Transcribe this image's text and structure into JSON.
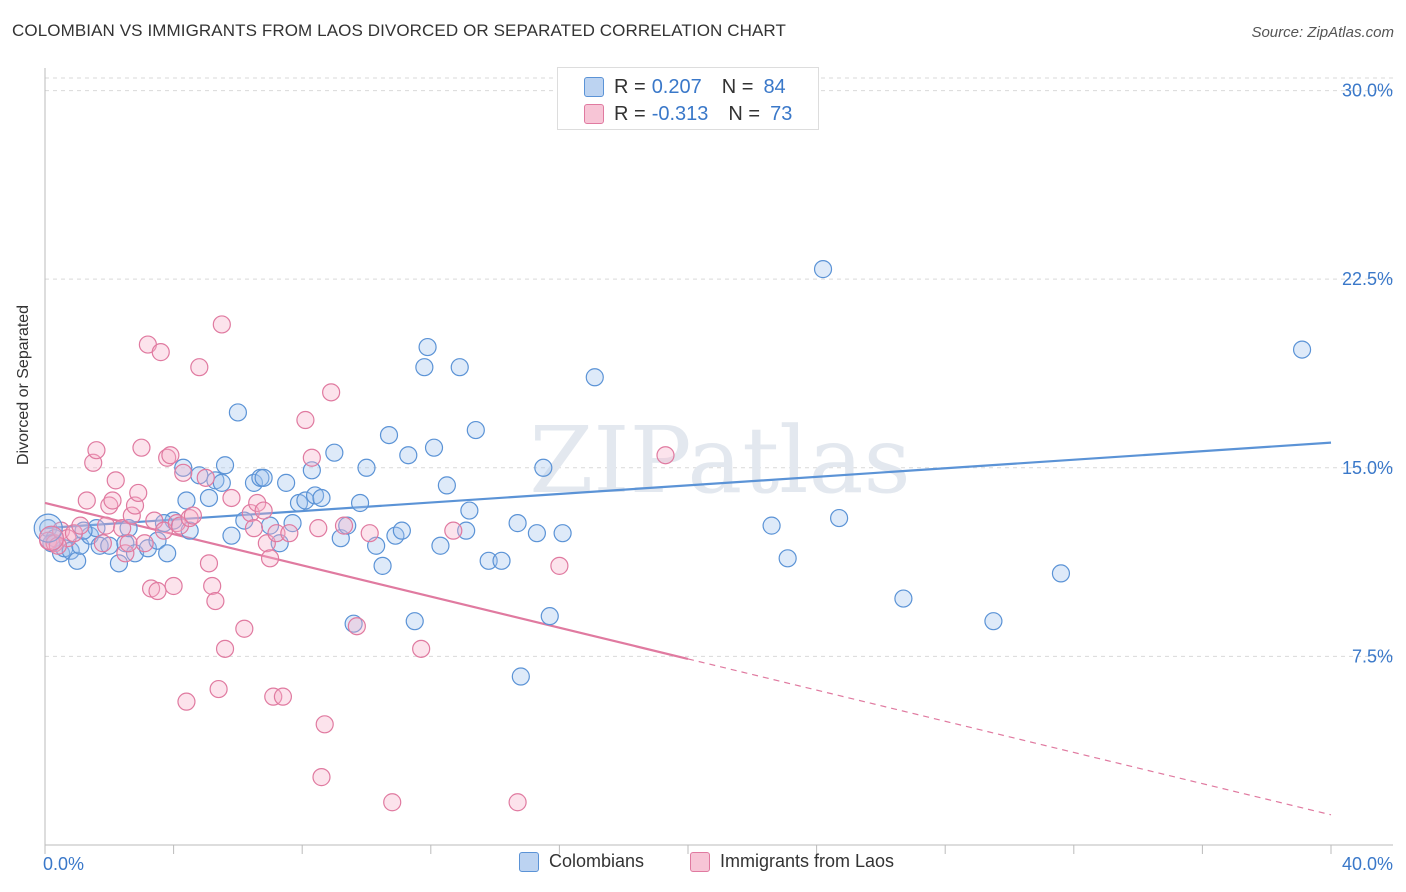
{
  "title": "COLOMBIAN VS IMMIGRANTS FROM LAOS DIVORCED OR SEPARATED CORRELATION CHART",
  "source": "Source: ZipAtlas.com",
  "watermark": "ZIPatlas",
  "legend": {
    "rows": [
      {
        "r_label": "R =",
        "r_value": "0.207",
        "n_label": "N =",
        "n_value": "84",
        "color": "#5b93d6"
      },
      {
        "r_label": "R =",
        "r_value": "-0.313",
        "n_label": "N =",
        "n_value": "73",
        "color": "#e07aa0"
      }
    ],
    "bottom": [
      "Colombians",
      "Immigrants from Laos"
    ]
  },
  "chart_data": {
    "type": "scatter",
    "title": "COLOMBIAN VS IMMIGRANTS FROM LAOS DIVORCED OR SEPARATED CORRELATION CHART",
    "xlabel": "",
    "ylabel": "Divorced or Separated",
    "xlim": [
      0,
      40
    ],
    "ylim": [
      0,
      30.5
    ],
    "x_tick_labels": [
      "0.0%",
      "40.0%"
    ],
    "y_ticks": [
      7.5,
      15.0,
      22.5,
      30.0
    ],
    "y_tick_labels": [
      "7.5%",
      "15.0%",
      "22.5%",
      "30.0%"
    ],
    "grid": true,
    "legend_position": "top-center",
    "series": [
      {
        "name": "Colombians",
        "color": "#5b93d6",
        "trend": {
          "x": [
            0,
            40
          ],
          "y": [
            12.6,
            16.0
          ],
          "dashed_from": null
        },
        "points": [
          [
            0.1,
            12.6
          ],
          [
            0.3,
            12.2
          ],
          [
            0.5,
            11.6
          ],
          [
            0.6,
            11.8
          ],
          [
            0.8,
            11.7
          ],
          [
            1.0,
            11.3
          ],
          [
            1.1,
            11.9
          ],
          [
            1.4,
            12.3
          ],
          [
            1.6,
            12.6
          ],
          [
            1.7,
            11.9
          ],
          [
            2.0,
            11.9
          ],
          [
            2.3,
            11.2
          ],
          [
            2.5,
            12.0
          ],
          [
            2.8,
            11.6
          ],
          [
            3.2,
            11.8
          ],
          [
            3.5,
            12.1
          ],
          [
            3.8,
            11.6
          ],
          [
            4.0,
            12.9
          ],
          [
            4.3,
            15.0
          ],
          [
            4.4,
            13.7
          ],
          [
            4.5,
            12.5
          ],
          [
            4.8,
            14.7
          ],
          [
            5.1,
            13.8
          ],
          [
            5.3,
            14.5
          ],
          [
            5.5,
            14.4
          ],
          [
            5.6,
            15.1
          ],
          [
            5.8,
            12.3
          ],
          [
            6.0,
            17.2
          ],
          [
            6.2,
            12.9
          ],
          [
            6.5,
            14.4
          ],
          [
            6.7,
            14.6
          ],
          [
            6.8,
            14.6
          ],
          [
            7.0,
            12.7
          ],
          [
            7.3,
            12.0
          ],
          [
            7.5,
            14.4
          ],
          [
            7.7,
            12.8
          ],
          [
            7.9,
            13.6
          ],
          [
            8.1,
            13.7
          ],
          [
            8.3,
            14.9
          ],
          [
            8.4,
            13.9
          ],
          [
            8.6,
            13.8
          ],
          [
            9.0,
            15.6
          ],
          [
            9.2,
            12.2
          ],
          [
            9.4,
            12.7
          ],
          [
            9.6,
            8.8
          ],
          [
            9.8,
            13.6
          ],
          [
            10.0,
            15.0
          ],
          [
            10.3,
            11.9
          ],
          [
            10.5,
            11.1
          ],
          [
            10.7,
            16.3
          ],
          [
            10.9,
            12.3
          ],
          [
            11.1,
            12.5
          ],
          [
            11.3,
            15.5
          ],
          [
            11.5,
            8.9
          ],
          [
            11.8,
            19.0
          ],
          [
            11.9,
            19.8
          ],
          [
            12.1,
            15.8
          ],
          [
            12.3,
            11.9
          ],
          [
            12.5,
            14.3
          ],
          [
            12.9,
            19.0
          ],
          [
            13.1,
            12.5
          ],
          [
            13.2,
            13.3
          ],
          [
            13.4,
            16.5
          ],
          [
            13.8,
            11.3
          ],
          [
            14.2,
            11.3
          ],
          [
            14.7,
            12.8
          ],
          [
            14.8,
            6.7
          ],
          [
            15.3,
            12.4
          ],
          [
            15.5,
            15.0
          ],
          [
            15.7,
            9.1
          ],
          [
            16.1,
            12.4
          ],
          [
            17.1,
            18.6
          ],
          [
            22.6,
            12.7
          ],
          [
            23.1,
            11.4
          ],
          [
            24.2,
            22.9
          ],
          [
            24.7,
            13.0
          ],
          [
            26.7,
            9.8
          ],
          [
            29.5,
            8.9
          ],
          [
            31.6,
            10.8
          ],
          [
            39.1,
            19.7
          ],
          [
            0.2,
            12.0
          ],
          [
            1.2,
            12.5
          ],
          [
            2.6,
            12.6
          ],
          [
            3.7,
            12.8
          ]
        ]
      },
      {
        "name": "Immigrants from Laos",
        "color": "#e07aa0",
        "trend": {
          "x": [
            0,
            40
          ],
          "y": [
            13.6,
            1.2
          ],
          "dashed_from": 20.0
        },
        "points": [
          [
            0.1,
            12.1
          ],
          [
            0.3,
            12.0
          ],
          [
            0.5,
            12.5
          ],
          [
            0.7,
            12.2
          ],
          [
            0.9,
            12.4
          ],
          [
            1.1,
            12.7
          ],
          [
            1.3,
            13.7
          ],
          [
            1.5,
            15.2
          ],
          [
            1.6,
            15.7
          ],
          [
            1.8,
            12.0
          ],
          [
            1.9,
            12.7
          ],
          [
            2.0,
            13.5
          ],
          [
            2.1,
            13.7
          ],
          [
            2.2,
            14.5
          ],
          [
            2.4,
            12.6
          ],
          [
            2.5,
            11.6
          ],
          [
            2.6,
            12.0
          ],
          [
            2.7,
            13.1
          ],
          [
            2.8,
            13.5
          ],
          [
            2.9,
            14.0
          ],
          [
            3.0,
            15.8
          ],
          [
            3.1,
            12.0
          ],
          [
            3.2,
            19.9
          ],
          [
            3.3,
            10.2
          ],
          [
            3.4,
            12.9
          ],
          [
            3.5,
            10.1
          ],
          [
            3.6,
            19.6
          ],
          [
            3.7,
            12.5
          ],
          [
            3.8,
            15.4
          ],
          [
            3.9,
            15.5
          ],
          [
            4.0,
            10.3
          ],
          [
            4.1,
            12.8
          ],
          [
            4.2,
            12.7
          ],
          [
            4.3,
            14.8
          ],
          [
            4.4,
            5.7
          ],
          [
            4.5,
            13.0
          ],
          [
            4.6,
            13.1
          ],
          [
            4.8,
            19.0
          ],
          [
            5.0,
            14.6
          ],
          [
            5.1,
            11.2
          ],
          [
            5.2,
            10.3
          ],
          [
            5.3,
            9.7
          ],
          [
            5.4,
            6.2
          ],
          [
            5.5,
            20.7
          ],
          [
            5.6,
            7.8
          ],
          [
            5.8,
            13.8
          ],
          [
            6.2,
            8.6
          ],
          [
            6.4,
            13.2
          ],
          [
            6.5,
            12.6
          ],
          [
            6.6,
            13.6
          ],
          [
            6.8,
            13.3
          ],
          [
            6.9,
            12.0
          ],
          [
            7.0,
            11.4
          ],
          [
            7.1,
            5.9
          ],
          [
            7.2,
            12.4
          ],
          [
            7.4,
            5.9
          ],
          [
            7.6,
            12.4
          ],
          [
            8.1,
            16.9
          ],
          [
            8.3,
            15.4
          ],
          [
            8.5,
            12.6
          ],
          [
            8.7,
            4.8
          ],
          [
            8.6,
            2.7
          ],
          [
            8.9,
            18.0
          ],
          [
            9.3,
            12.7
          ],
          [
            9.7,
            8.7
          ],
          [
            10.1,
            12.4
          ],
          [
            10.8,
            1.7
          ],
          [
            11.7,
            7.8
          ],
          [
            12.7,
            12.5
          ],
          [
            14.7,
            1.7
          ],
          [
            16.0,
            11.1
          ],
          [
            19.3,
            15.5
          ],
          [
            0.4,
            11.9
          ]
        ]
      }
    ]
  }
}
